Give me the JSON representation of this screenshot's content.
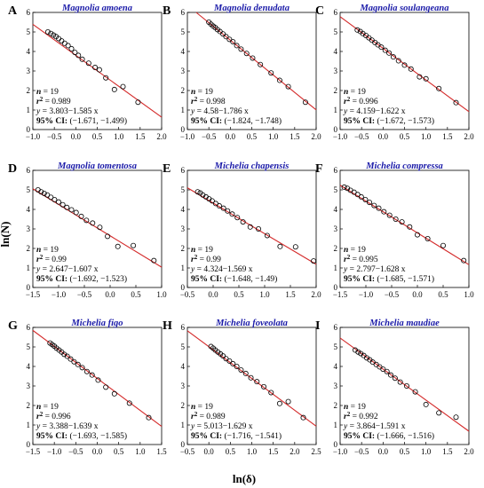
{
  "xlabel": "ln(δ)",
  "ylabel": "ln(N)",
  "colors": {
    "fit_line": "#d42a2a",
    "title": "#1a1aa8",
    "marker": "#000000"
  },
  "chart_data": [
    {
      "type": "scatter",
      "letter": "A",
      "title": "Magnolia amoena",
      "n": "19",
      "r2": "0.989",
      "equation": "3.803−1.585 x",
      "ci": "(−1.671, −1.499)",
      "xlim": [
        -1.0,
        2.0
      ],
      "ylim": [
        0,
        6
      ],
      "xticks": [
        -1.0,
        -0.5,
        0.0,
        0.5,
        1.0,
        1.5,
        2.0
      ],
      "xtick_labels": [
        "−1.0",
        "−0.5",
        "0.0",
        "0.5",
        "1.0",
        "1.5",
        "2.0"
      ],
      "yticks": [
        0,
        1,
        2,
        3,
        4,
        5,
        6
      ],
      "ytick_labels": [
        "0",
        "1",
        "2",
        "3",
        "4",
        "5",
        "6"
      ],
      "fit": {
        "intercept": 3.803,
        "slope": -1.585
      },
      "x": [
        -0.65,
        -0.58,
        -0.52,
        -0.46,
        -0.4,
        -0.33,
        -0.26,
        -0.18,
        -0.1,
        -0.02,
        0.06,
        0.15,
        0.3,
        0.45,
        0.55,
        0.7,
        0.9,
        1.1,
        1.45
      ],
      "y": [
        5.0,
        4.92,
        4.84,
        4.76,
        4.66,
        4.54,
        4.42,
        4.3,
        4.14,
        3.95,
        3.8,
        3.6,
        3.4,
        3.18,
        3.06,
        2.65,
        2.05,
        2.2,
        1.4
      ]
    },
    {
      "type": "scatter",
      "letter": "B",
      "title": "Magnolia denudata",
      "n": "19",
      "r2": "0.998",
      "equation": "4.58−1.786 x",
      "ci": "(−1.824, −1.748)",
      "xlim": [
        -1.0,
        2.0
      ],
      "ylim": [
        0,
        6
      ],
      "xticks": [
        -1.0,
        -0.5,
        0.0,
        0.5,
        1.0,
        1.5,
        2.0
      ],
      "xtick_labels": [
        "−1.0",
        "−0.5",
        "0.0",
        "0.5",
        "1.0",
        "1.5",
        "2.0"
      ],
      "yticks": [
        0,
        1,
        2,
        3,
        4,
        5,
        6
      ],
      "ytick_labels": [
        "0",
        "1",
        "2",
        "3",
        "4",
        "5",
        "6"
      ],
      "fit": {
        "intercept": 4.58,
        "slope": -1.786
      },
      "x": [
        -0.5,
        -0.45,
        -0.4,
        -0.35,
        -0.3,
        -0.24,
        -0.17,
        -0.1,
        -0.02,
        0.06,
        0.15,
        0.25,
        0.38,
        0.52,
        0.7,
        0.95,
        1.15,
        1.35,
        1.75
      ],
      "y": [
        5.5,
        5.4,
        5.3,
        5.22,
        5.12,
        5.02,
        4.9,
        4.76,
        4.62,
        4.5,
        4.3,
        4.12,
        3.9,
        3.66,
        3.33,
        2.9,
        2.52,
        2.2,
        1.4
      ]
    },
    {
      "type": "scatter",
      "letter": "C",
      "title": "Magnolia soulangeana",
      "n": "19",
      "r2": "0.996",
      "equation": "4.159−1.622 x",
      "ci": "(−1.672, −1.573)",
      "xlim": [
        -1.0,
        2.0
      ],
      "ylim": [
        0,
        6
      ],
      "xticks": [
        -1.0,
        -0.5,
        0.0,
        0.5,
        1.0,
        1.5,
        2.0
      ],
      "xtick_labels": [
        "−1.0",
        "−0.5",
        "0.0",
        "0.5",
        "1.0",
        "1.5",
        "2.0"
      ],
      "yticks": [
        0,
        1,
        2,
        3,
        4,
        5,
        6
      ],
      "ytick_labels": [
        "0",
        "1",
        "2",
        "3",
        "4",
        "5",
        "6"
      ],
      "fit": {
        "intercept": 4.159,
        "slope": -1.622
      },
      "x": [
        -0.6,
        -0.53,
        -0.47,
        -0.4,
        -0.33,
        -0.26,
        -0.19,
        -0.12,
        -0.04,
        0.05,
        0.14,
        0.24,
        0.36,
        0.5,
        0.65,
        0.85,
        1.0,
        1.3,
        1.7
      ],
      "y": [
        5.1,
        5.02,
        4.92,
        4.82,
        4.7,
        4.58,
        4.46,
        4.34,
        4.22,
        4.06,
        3.92,
        3.72,
        3.52,
        3.3,
        3.1,
        2.7,
        2.6,
        2.1,
        1.38
      ]
    },
    {
      "type": "scatter",
      "letter": "D",
      "title": "Magnolia tomentosa",
      "n": "19",
      "r2": "0.99",
      "equation": "2.647−1.607 x",
      "ci": "(−1.692, −1.523)",
      "xlim": [
        -1.5,
        1.0
      ],
      "ylim": [
        0,
        6
      ],
      "xticks": [
        -1.5,
        -1.0,
        -0.5,
        0.0,
        0.5,
        1.0
      ],
      "xtick_labels": [
        "−1.5",
        "−1.0",
        "−0.5",
        "0.0",
        "0.5",
        "1.0"
      ],
      "yticks": [
        0,
        1,
        2,
        3,
        4,
        5,
        6
      ],
      "ytick_labels": [
        "0",
        "1",
        "2",
        "3",
        "4",
        "5",
        "6"
      ],
      "fit": {
        "intercept": 2.647,
        "slope": -1.607
      },
      "x": [
        -1.4,
        -1.34,
        -1.28,
        -1.22,
        -1.15,
        -1.08,
        -1.0,
        -0.92,
        -0.84,
        -0.75,
        -0.66,
        -0.56,
        -0.46,
        -0.34,
        -0.2,
        -0.05,
        0.15,
        0.45,
        0.85
      ],
      "y": [
        5.0,
        4.9,
        4.82,
        4.74,
        4.62,
        4.5,
        4.38,
        4.24,
        4.1,
        3.98,
        3.84,
        3.64,
        3.44,
        3.3,
        3.08,
        2.62,
        2.1,
        2.15,
        1.38
      ]
    },
    {
      "type": "scatter",
      "letter": "E",
      "title": "Michelia chapensis",
      "n": "19",
      "r2": "0.99",
      "equation": "4.324−1.569 x",
      "ci": "(−1.648, −1.49)",
      "xlim": [
        -0.5,
        2.0
      ],
      "ylim": [
        0,
        6
      ],
      "xticks": [
        -0.5,
        0.0,
        0.5,
        1.0,
        1.5,
        2.0
      ],
      "xtick_labels": [
        "−0.5",
        "0.0",
        "0.5",
        "1.0",
        "1.5",
        "2.0"
      ],
      "yticks": [
        0,
        1,
        2,
        3,
        4,
        5,
        6
      ],
      "ytick_labels": [
        "0",
        "1",
        "2",
        "3",
        "4",
        "5",
        "6"
      ],
      "fit": {
        "intercept": 4.324,
        "slope": -1.569
      },
      "x": [
        -0.3,
        -0.25,
        -0.2,
        -0.14,
        -0.08,
        -0.02,
        0.05,
        0.12,
        0.2,
        0.28,
        0.37,
        0.47,
        0.58,
        0.72,
        0.88,
        1.05,
        1.3,
        1.6,
        1.95
      ],
      "y": [
        4.9,
        4.84,
        4.74,
        4.64,
        4.54,
        4.44,
        4.3,
        4.18,
        4.06,
        3.92,
        3.76,
        3.58,
        3.36,
        3.1,
        3.0,
        2.66,
        2.1,
        2.08,
        1.36
      ]
    },
    {
      "type": "scatter",
      "letter": "F",
      "title": "Michelia compressa",
      "n": "19",
      "r2": "0.995",
      "equation": "2.797−1.628 x",
      "ci": "(−1.685, −1.571)",
      "xlim": [
        -1.5,
        1.0
      ],
      "ylim": [
        0,
        6
      ],
      "xticks": [
        -1.5,
        -1.0,
        -0.5,
        0.0,
        0.5,
        1.0
      ],
      "xtick_labels": [
        "−1.5",
        "−1.0",
        "−0.5",
        "0.0",
        "0.5",
        "1.0"
      ],
      "yticks": [
        0,
        1,
        2,
        3,
        4,
        5,
        6
      ],
      "ytick_labels": [
        "0",
        "1",
        "2",
        "3",
        "4",
        "5",
        "6"
      ],
      "fit": {
        "intercept": 2.797,
        "slope": -1.628
      },
      "x": [
        -1.42,
        -1.36,
        -1.3,
        -1.23,
        -1.16,
        -1.09,
        -1.01,
        -0.93,
        -0.84,
        -0.75,
        -0.65,
        -0.54,
        -0.42,
        -0.3,
        -0.15,
        0.0,
        0.2,
        0.5,
        0.9
      ],
      "y": [
        5.14,
        5.08,
        4.98,
        4.88,
        4.76,
        4.64,
        4.5,
        4.36,
        4.2,
        4.06,
        3.88,
        3.7,
        3.5,
        3.36,
        3.1,
        2.7,
        2.5,
        2.15,
        1.38
      ]
    },
    {
      "type": "scatter",
      "letter": "G",
      "title": "Michelia figo",
      "n": "19",
      "r2": "0.996",
      "equation": "3.388−1.639 x",
      "ci": "(−1.693, −1.585)",
      "xlim": [
        -1.5,
        1.5
      ],
      "ylim": [
        0,
        6
      ],
      "xticks": [
        -1.5,
        -1.0,
        -0.5,
        0.0,
        0.5,
        1.0,
        1.5
      ],
      "xtick_labels": [
        "−1.5",
        "−1.0",
        "−0.5",
        "0.0",
        "0.5",
        "1.0",
        "1.5"
      ],
      "yticks": [
        0,
        1,
        2,
        3,
        4,
        5,
        6
      ],
      "ytick_labels": [
        "0",
        "1",
        "2",
        "3",
        "4",
        "5",
        "6"
      ],
      "fit": {
        "intercept": 3.388,
        "slope": -1.639
      },
      "x": [
        -1.1,
        -1.05,
        -1.0,
        -0.95,
        -0.89,
        -0.83,
        -0.77,
        -0.7,
        -0.62,
        -0.54,
        -0.45,
        -0.35,
        -0.24,
        -0.12,
        0.02,
        0.2,
        0.4,
        0.75,
        1.2
      ],
      "y": [
        5.2,
        5.12,
        5.04,
        4.94,
        4.84,
        4.74,
        4.62,
        4.52,
        4.38,
        4.24,
        4.1,
        3.94,
        3.74,
        3.56,
        3.3,
        2.94,
        2.6,
        2.12,
        1.38
      ]
    },
    {
      "type": "scatter",
      "letter": "H",
      "title": "Michelia foveolata",
      "n": "19",
      "r2": "0.989",
      "equation": "5.013−1.629 x",
      "ci": "(−1.716, −1.541)",
      "xlim": [
        -0.5,
        2.5
      ],
      "ylim": [
        0,
        6
      ],
      "xticks": [
        -0.5,
        0.0,
        0.5,
        1.0,
        1.5,
        2.0,
        2.5
      ],
      "xtick_labels": [
        "−0.5",
        "0.0",
        "0.5",
        "1.0",
        "1.5",
        "2.0",
        "2.5"
      ],
      "yticks": [
        0,
        1,
        2,
        3,
        4,
        5,
        6
      ],
      "ytick_labels": [
        "0",
        "1",
        "2",
        "3",
        "4",
        "5",
        "6"
      ],
      "fit": {
        "intercept": 5.013,
        "slope": -1.629
      },
      "x": [
        0.05,
        0.1,
        0.15,
        0.21,
        0.27,
        0.33,
        0.4,
        0.48,
        0.56,
        0.65,
        0.75,
        0.86,
        0.98,
        1.12,
        1.28,
        1.45,
        1.65,
        1.85,
        2.2
      ],
      "y": [
        5.02,
        4.94,
        4.84,
        4.74,
        4.64,
        4.54,
        4.4,
        4.28,
        4.14,
        4.0,
        3.82,
        3.64,
        3.42,
        3.22,
        2.96,
        2.66,
        2.1,
        2.2,
        1.38
      ]
    },
    {
      "type": "scatter",
      "letter": "I",
      "title": "Michelia maudiae",
      "n": "19",
      "r2": "0.992",
      "equation": "3.864−1.591 x",
      "ci": "(−1.666, −1.516)",
      "xlim": [
        -1.0,
        2.0
      ],
      "ylim": [
        0,
        6
      ],
      "xticks": [
        -1.0,
        -0.5,
        0.0,
        0.5,
        1.0,
        1.5,
        2.0
      ],
      "xtick_labels": [
        "−1.0",
        "−0.5",
        "0.0",
        "0.5",
        "1.0",
        "1.5",
        "2.0"
      ],
      "yticks": [
        0,
        1,
        2,
        3,
        4,
        5,
        6
      ],
      "ytick_labels": [
        "0",
        "1",
        "2",
        "3",
        "4",
        "5",
        "6"
      ],
      "fit": {
        "intercept": 3.864,
        "slope": -1.591
      },
      "x": [
        -0.65,
        -0.58,
        -0.52,
        -0.45,
        -0.38,
        -0.31,
        -0.24,
        -0.16,
        -0.08,
        0.0,
        0.09,
        0.18,
        0.28,
        0.4,
        0.55,
        0.75,
        1.0,
        1.3,
        1.7
      ],
      "y": [
        4.84,
        4.74,
        4.66,
        4.56,
        4.44,
        4.34,
        4.22,
        4.1,
        3.98,
        3.86,
        3.74,
        3.56,
        3.4,
        3.2,
        3.0,
        2.7,
        2.05,
        1.62,
        1.4
      ]
    }
  ]
}
